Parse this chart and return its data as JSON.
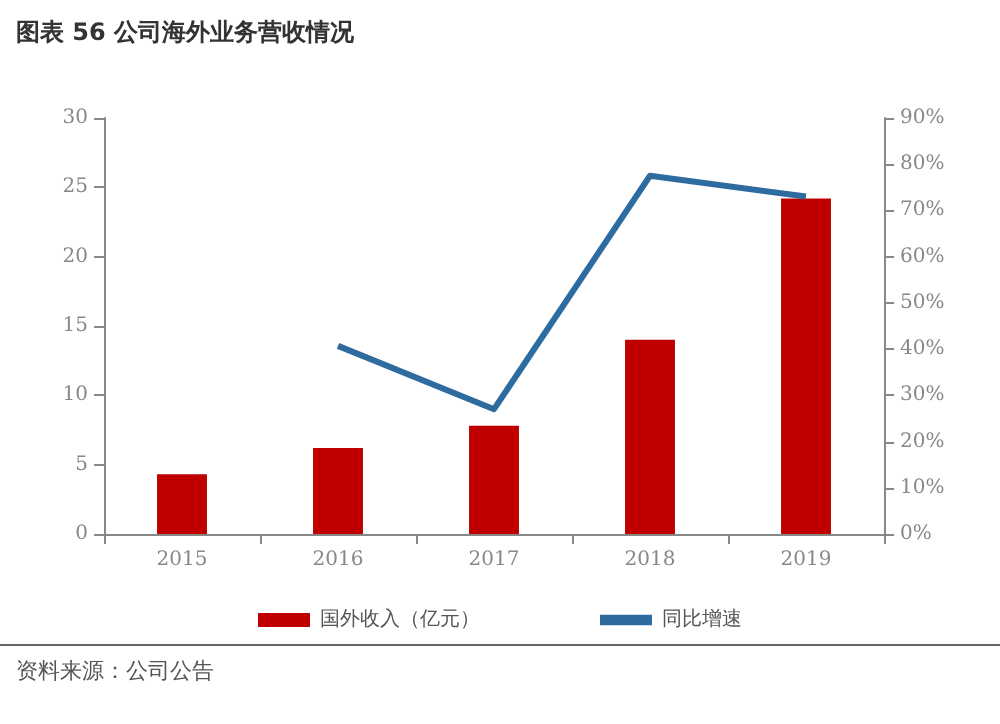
{
  "chart_data": {
    "type": "bar",
    "title": "图表 56 公司海外业务营收情况",
    "categories": [
      "2015",
      "2016",
      "2017",
      "2018",
      "2019"
    ],
    "series": [
      {
        "name": "国外收入（亿元）",
        "color": "#c00000",
        "values": [
          4.3,
          6.2,
          7.8,
          14.0,
          24.2
        ]
      },
      {
        "name": "同比增速",
        "type": "line",
        "axis": "y2",
        "color": "#2e6b9e",
        "values": [
          null,
          40.7,
          27,
          77.5,
          73
        ]
      }
    ],
    "ylim": [
      0,
      30
    ],
    "yticks": [
      0,
      5,
      10,
      15,
      20,
      25,
      30
    ],
    "y2lim": [
      0,
      90
    ],
    "y2ticks": [
      {
        "value": 0,
        "label": "0%"
      },
      {
        "value": 10,
        "label": "10%"
      },
      {
        "value": 20,
        "label": "20%"
      },
      {
        "value": 30,
        "label": "30%"
      },
      {
        "value": 40,
        "label": "40%"
      },
      {
        "value": 50,
        "label": "50%"
      },
      {
        "value": 60,
        "label": "60%"
      },
      {
        "value": 70,
        "label": "70%"
      },
      {
        "value": 80,
        "label": "80%"
      },
      {
        "value": 90,
        "label": "90%"
      }
    ],
    "legend": "bottom",
    "grid": false,
    "marker": "none",
    "annotations": [
      "资料来源：公司公告"
    ]
  }
}
